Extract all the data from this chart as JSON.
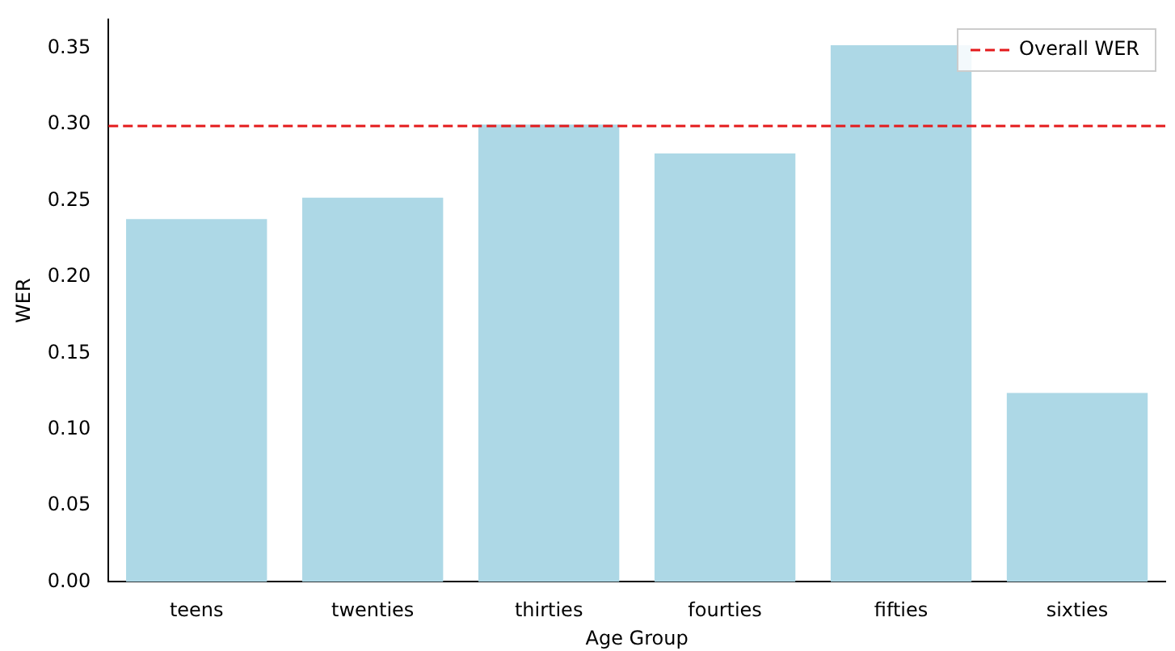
{
  "chart_data": {
    "type": "bar",
    "xlabel": "Age Group",
    "ylabel": "WER",
    "categories": [
      "teens",
      "twenties",
      "thirties",
      "fourties",
      "fifties",
      "sixties"
    ],
    "values": [
      0.238,
      0.252,
      0.3,
      0.281,
      0.352,
      0.124
    ],
    "color": "#add8e6",
    "ylim": [
      0,
      0.369
    ],
    "yticks": [
      {
        "value": 0,
        "label": "0.00"
      },
      {
        "value": 0.05,
        "label": "0.05"
      },
      {
        "value": 0.1,
        "label": "0.10"
      },
      {
        "value": 0.15,
        "label": "0.15"
      },
      {
        "value": 0.2,
        "label": "0.20"
      },
      {
        "value": 0.25,
        "label": "0.25"
      },
      {
        "value": 0.3,
        "label": "0.30"
      },
      {
        "value": 0.35,
        "label": "0.35"
      }
    ],
    "ref_lines": [
      {
        "axis": "y",
        "value": 0.299,
        "label": "Overall WER",
        "color": "#e41a1c",
        "line_style": "dashed"
      }
    ],
    "legend": "top right",
    "grid": false
  }
}
